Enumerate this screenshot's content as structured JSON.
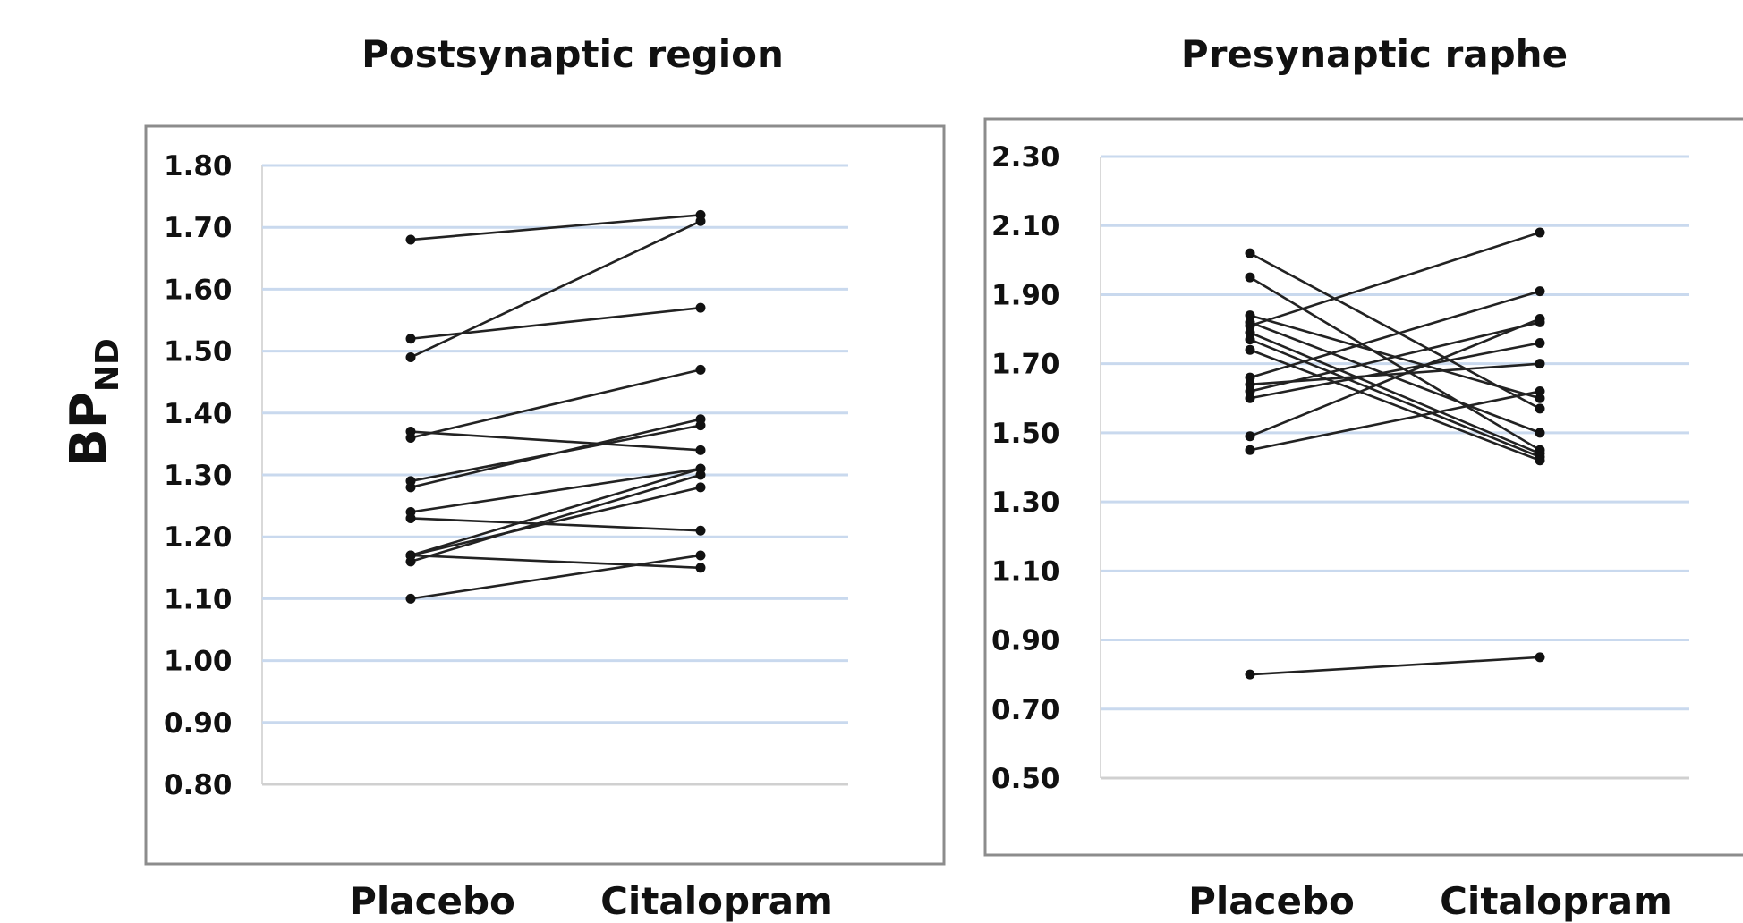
{
  "figure": {
    "ylabel": {
      "main": "BP",
      "sub": "ND"
    }
  },
  "chart_data": [
    {
      "type": "line",
      "title": "Postsynaptic region",
      "categories": [
        "Placebo",
        "Citalopram"
      ],
      "ylim": [
        0.8,
        1.8
      ],
      "yticks": [
        "0.80",
        "0.90",
        "1.00",
        "1.10",
        "1.20",
        "1.30",
        "1.40",
        "1.50",
        "1.60",
        "1.70",
        "1.80"
      ],
      "grid": true,
      "line_color": "#222222",
      "grid_color": "#c9d9ee",
      "pairs": [
        [
          1.68,
          1.72
        ],
        [
          1.49,
          1.71
        ],
        [
          1.52,
          1.57
        ],
        [
          1.36,
          1.47
        ],
        [
          1.37,
          1.34
        ],
        [
          1.29,
          1.38
        ],
        [
          1.28,
          1.39
        ],
        [
          1.24,
          1.31
        ],
        [
          1.23,
          1.21
        ],
        [
          1.17,
          1.31
        ],
        [
          1.17,
          1.28
        ],
        [
          1.16,
          1.3
        ],
        [
          1.17,
          1.15
        ],
        [
          1.1,
          1.17
        ]
      ]
    },
    {
      "type": "line",
      "title": "Presynaptic raphe",
      "categories": [
        "Placebo",
        "Citalopram"
      ],
      "ylim": [
        0.5,
        2.3
      ],
      "yticks": [
        "0.50",
        "0.70",
        "0.90",
        "1.10",
        "1.30",
        "1.50",
        "1.70",
        "1.90",
        "2.10",
        "2.30"
      ],
      "grid": true,
      "line_color": "#222222",
      "grid_color": "#c9d9ee",
      "pairs": [
        [
          2.02,
          1.57
        ],
        [
          1.95,
          1.45
        ],
        [
          1.84,
          1.6
        ],
        [
          1.82,
          1.5
        ],
        [
          1.81,
          2.08
        ],
        [
          1.79,
          1.44
        ],
        [
          1.77,
          1.43
        ],
        [
          1.74,
          1.42
        ],
        [
          1.66,
          1.91
        ],
        [
          1.64,
          1.7
        ],
        [
          1.62,
          1.82
        ],
        [
          1.6,
          1.76
        ],
        [
          1.49,
          1.83
        ],
        [
          1.45,
          1.62
        ],
        [
          0.8,
          0.85
        ]
      ]
    }
  ]
}
